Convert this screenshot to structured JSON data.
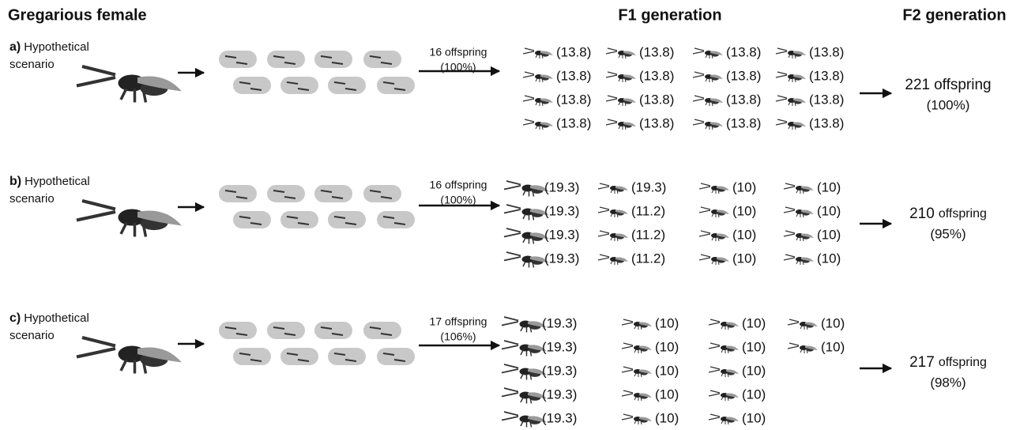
{
  "headers": [
    "Gregarious female",
    "F1 generation",
    "F2 generation"
  ],
  "scenarios": [
    {
      "letter": "a)",
      "label": [
        "Hypothetical",
        "scenario"
      ],
      "offspring": "16 offspring",
      "percent": "(100%)",
      "f1": [
        [
          "(13.8)",
          "(13.8)",
          "(13.8)",
          "(13.8)"
        ],
        [
          "(13.8)",
          "(13.8)",
          "(13.8)",
          "(13.8)"
        ],
        [
          "(13.8)",
          "(13.8)",
          "(13.8)",
          "(13.8)"
        ],
        [
          "(13.8)",
          "(13.8)",
          "(13.8)",
          "(13.8)"
        ]
      ],
      "f2_count": "221",
      "f2_word": "offspring",
      "f2_percent": "(100%)"
    },
    {
      "letter": "b)",
      "label": [
        "Hypothetical",
        "scenario"
      ],
      "offspring": "16 offspring",
      "percent": "(100%)",
      "f1": [
        [
          "(19.3)",
          "(19.3)",
          "(19.3)",
          "(19.3)"
        ],
        [
          "(19.3)",
          "(11.2)",
          "(11.2)",
          "(11.2)"
        ],
        [
          "(10)",
          "(10)",
          "(10)",
          "(10)"
        ],
        [
          "(10)",
          "(10)",
          "(10)",
          "(10)"
        ]
      ],
      "f2_count": "210",
      "f2_word": "offspring",
      "f2_percent": "(95%)"
    },
    {
      "letter": "c)",
      "label": [
        "Hypothetical",
        "scenario"
      ],
      "offspring": "17 offspring",
      "percent": "(106%)",
      "f1": [
        [
          "(19.3)",
          "(19.3)",
          "(19.3)",
          "(19.3)",
          "(19.3)"
        ],
        [
          "(10)",
          "(10)",
          "(10)",
          "(10)",
          "(10)"
        ],
        [
          "(10)",
          "(10)",
          "(10)",
          "(10)",
          "(10)"
        ],
        [
          "(10)",
          "(10)"
        ]
      ],
      "f2_count": "217",
      "f2_word": "offspring",
      "f2_percent": "(98%)"
    }
  ]
}
